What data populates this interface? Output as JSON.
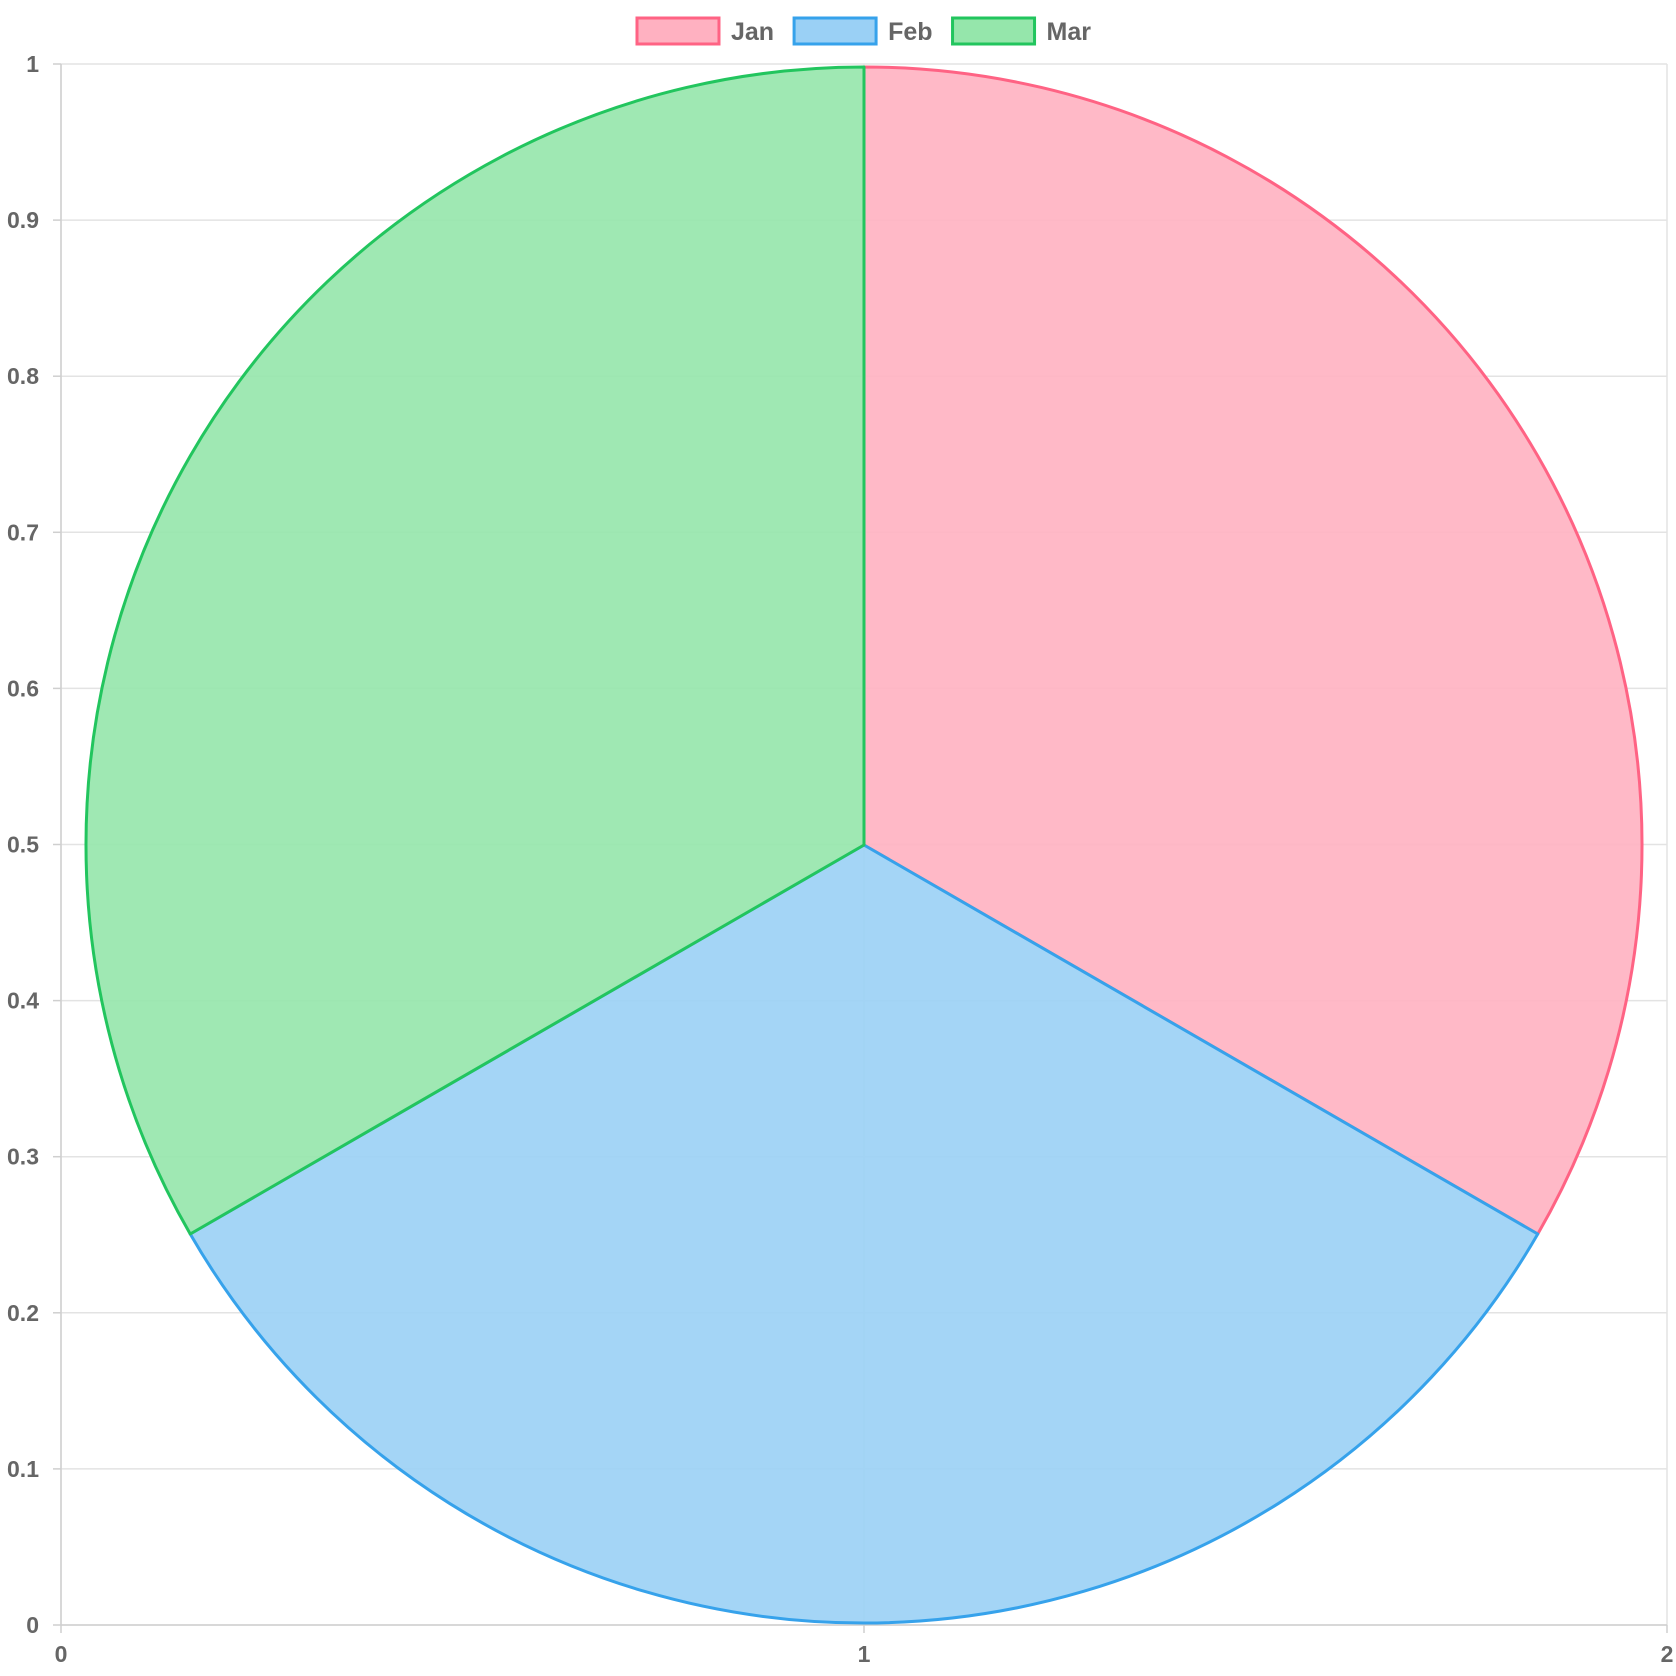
{
  "chart_data": {
    "type": "pie",
    "title": "",
    "xlabel": "",
    "ylabel": "",
    "categories": [
      "Jan",
      "Feb",
      "Mar"
    ],
    "values": [
      1,
      1,
      1
    ],
    "colors": {
      "Jan": {
        "border": "#ff6384",
        "fill": "#ffb1c1"
      },
      "Feb": {
        "border": "#36a2eb",
        "fill": "#9ad0f5"
      },
      "Mar": {
        "border": "#22c55e",
        "fill": "#95e6ab"
      }
    },
    "legend_position": "top",
    "x_axis": {
      "range": [
        0,
        2
      ],
      "ticks": [
        "0",
        "1",
        "2"
      ]
    },
    "y_axis": {
      "range": [
        0,
        1
      ],
      "ticks": [
        "0",
        "0.1",
        "0.2",
        "0.3",
        "0.4",
        "0.5",
        "0.6",
        "0.7",
        "0.8",
        "0.9",
        "1"
      ]
    },
    "grid": true
  }
}
